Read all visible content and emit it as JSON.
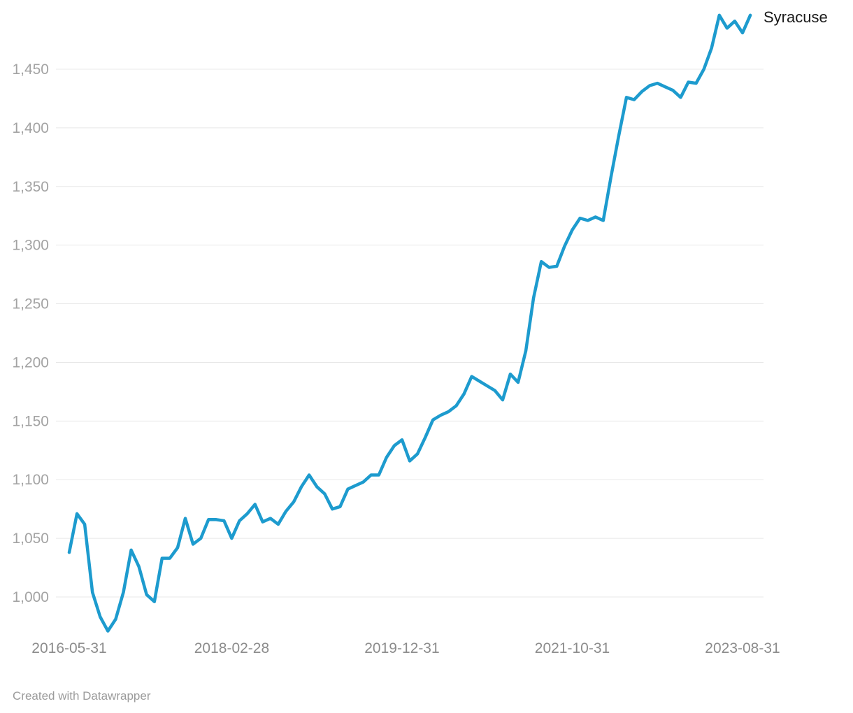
{
  "chart": {
    "series_label": "Syracuse",
    "series_label_color": "#1a1a1a",
    "line_color": "#1d9bce",
    "grid_color": "#e8e8e8",
    "y_label_color": "#a3a3a3",
    "x_label_color": "#8c8c8c",
    "background": "#ffffff"
  },
  "footer": {
    "text": "Created with Datawrapper",
    "color": "#9b9b9b"
  },
  "chart_data": {
    "type": "line",
    "title": "",
    "xlabel": "",
    "ylabel": "",
    "grid": "horizontal",
    "legend_position": "right-of-line-end",
    "ylim": [
      960,
      1505
    ],
    "y_ticks": [
      {
        "value": 1000,
        "label": "1,000"
      },
      {
        "value": 1050,
        "label": "1,050"
      },
      {
        "value": 1100,
        "label": "1,100"
      },
      {
        "value": 1150,
        "label": "1,150"
      },
      {
        "value": 1200,
        "label": "1,200"
      },
      {
        "value": 1250,
        "label": "1,250"
      },
      {
        "value": 1300,
        "label": "1,300"
      },
      {
        "value": 1350,
        "label": "1,350"
      },
      {
        "value": 1400,
        "label": "1,400"
      },
      {
        "value": 1450,
        "label": "1,450"
      }
    ],
    "x_ticks": [
      {
        "index": 0,
        "label": "2016-05-31"
      },
      {
        "index": 21,
        "label": "2018-02-28"
      },
      {
        "index": 43,
        "label": "2019-12-31"
      },
      {
        "index": 65,
        "label": "2021-10-31"
      },
      {
        "index": 87,
        "label": "2023-08-31"
      }
    ],
    "x": [
      "2016-05-31",
      "2016-06-30",
      "2016-07-31",
      "2016-08-31",
      "2016-09-30",
      "2016-10-31",
      "2016-11-30",
      "2016-12-31",
      "2017-01-31",
      "2017-02-28",
      "2017-03-31",
      "2017-04-30",
      "2017-05-31",
      "2017-06-30",
      "2017-07-31",
      "2017-08-31",
      "2017-09-30",
      "2017-10-31",
      "2017-11-30",
      "2017-12-31",
      "2018-01-31",
      "2018-02-28",
      "2018-03-31",
      "2018-04-30",
      "2018-05-31",
      "2018-06-30",
      "2018-07-31",
      "2018-08-31",
      "2018-09-30",
      "2018-10-31",
      "2018-11-30",
      "2018-12-31",
      "2019-01-31",
      "2019-02-28",
      "2019-03-31",
      "2019-04-30",
      "2019-05-31",
      "2019-06-30",
      "2019-07-31",
      "2019-08-31",
      "2019-09-30",
      "2019-10-31",
      "2019-11-30",
      "2019-12-31",
      "2020-01-31",
      "2020-02-29",
      "2020-03-31",
      "2020-04-30",
      "2020-05-31",
      "2020-06-30",
      "2020-07-31",
      "2020-08-31",
      "2020-09-30",
      "2020-10-31",
      "2020-11-30",
      "2020-12-31",
      "2021-01-31",
      "2021-02-28",
      "2021-03-31",
      "2021-04-30",
      "2021-05-31",
      "2021-06-30",
      "2021-07-31",
      "2021-08-31",
      "2021-09-30",
      "2021-10-31",
      "2021-11-30",
      "2021-12-31",
      "2022-01-31",
      "2022-02-28",
      "2022-03-31",
      "2022-04-30",
      "2022-05-31",
      "2022-06-30",
      "2022-07-31",
      "2022-08-31",
      "2022-09-30",
      "2022-10-31",
      "2022-11-30",
      "2022-12-31",
      "2023-01-31",
      "2023-02-28",
      "2023-03-31",
      "2023-04-30",
      "2023-05-31",
      "2023-06-30",
      "2023-07-31",
      "2023-08-31",
      "2023-09-30"
    ],
    "series": [
      {
        "name": "Syracuse",
        "values": [
          1038,
          1071,
          1062,
          1004,
          983,
          971,
          981,
          1004,
          1040,
          1026,
          1002,
          996,
          1033,
          1033,
          1042,
          1067,
          1045,
          1050,
          1066,
          1066,
          1065,
          1050,
          1065,
          1071,
          1079,
          1064,
          1067,
          1062,
          1073,
          1081,
          1094,
          1104,
          1094,
          1088,
          1075,
          1077,
          1092,
          1095,
          1098,
          1104,
          1104,
          1119,
          1129,
          1134,
          1116,
          1122,
          1136,
          1151,
          1155,
          1158,
          1163,
          1173,
          1188,
          1184,
          1180,
          1176,
          1168,
          1190,
          1183,
          1210,
          1255,
          1286,
          1281,
          1282,
          1299,
          1313,
          1323,
          1321,
          1324,
          1321,
          1358,
          1393,
          1426,
          1424,
          1431,
          1436,
          1438,
          1435,
          1432,
          1426,
          1439,
          1438,
          1450,
          1468,
          1496,
          1485,
          1491,
          1481,
          1496
        ]
      }
    ]
  }
}
